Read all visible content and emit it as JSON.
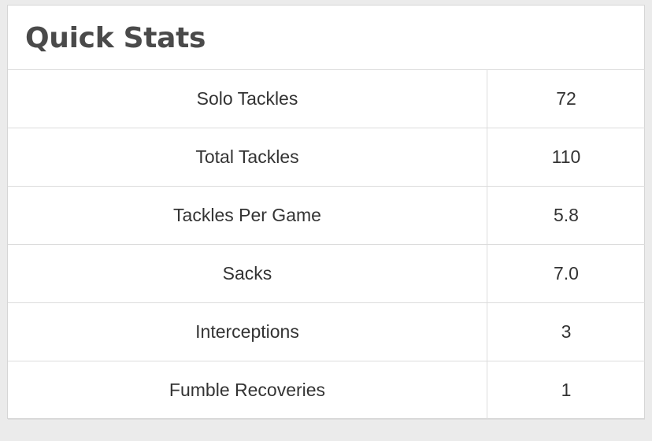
{
  "panel": {
    "title": "Quick Stats"
  },
  "stats": [
    {
      "label": "Solo Tackles",
      "value": "72"
    },
    {
      "label": "Total Tackles",
      "value": "110"
    },
    {
      "label": "Tackles Per Game",
      "value": "5.8"
    },
    {
      "label": "Sacks",
      "value": "7.0"
    },
    {
      "label": "Interceptions",
      "value": "3"
    },
    {
      "label": "Fumble Recoveries",
      "value": "1"
    }
  ],
  "colors": {
    "page_background": "#ebebeb",
    "panel_background": "#ffffff",
    "title_text": "#4a4a4a",
    "cell_text": "#333333",
    "border": "#dcdcdc"
  }
}
